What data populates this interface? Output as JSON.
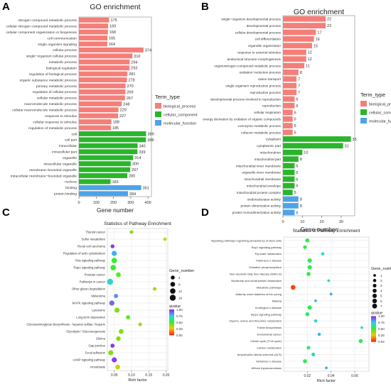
{
  "colors": {
    "bp": "#F47F79",
    "cc": "#2BB52C",
    "mf": "#4EA3E6",
    "grid": "#EBEBEB",
    "panel": "#FFFFFF"
  },
  "chart_data": [
    {
      "panel": "A",
      "type": "bar",
      "orientation": "horizontal",
      "title": "GO enrichment",
      "xlabel": "Gene number",
      "ylabel": "",
      "xlim": [
        0,
        420
      ],
      "xticks": [
        0,
        100,
        200,
        300,
        400
      ],
      "legend_title": "Term_type",
      "legend_placement": "right",
      "legend": [
        "biological_process",
        "cellular_component",
        "molecular_function"
      ],
      "categories": [
        "nitrogen compound metabolic process",
        "cellular nitrogen compound metabolic process",
        "cellular component organization or biogenesis",
        "cell communication",
        "single organism signaling",
        "cellular process",
        "single−organism cellular process",
        "metabolic process",
        "biological regulation",
        "regulation of biological process",
        "organic substance metabolic process",
        "primary metabolic process",
        "regulation of cellular process",
        "cellular metabolic process",
        "macromolecule metabolic process",
        "cellular macromolecule metabolic process",
        "response to stimulus",
        "cellular response to stimulus",
        "regulation of metabolic process",
        "cell",
        "cell part",
        "intracellular",
        "intracellular part",
        "organelle",
        "intracellular organelle",
        "membrane−bounded organelle",
        "intracellular membrane−bounded organelle",
        "nucleus",
        "binding",
        "protein binding"
      ],
      "values": [
        175,
        169,
        168,
        165,
        164,
        374,
        310,
        294,
        293,
        281,
        278,
        270,
        269,
        267,
        248,
        229,
        227,
        188,
        185,
        389,
        388,
        340,
        339,
        314,
        300,
        297,
        280,
        183,
        361,
        284
      ],
      "value_labels": [
        "175",
        "169",
        "168",
        "165",
        "164",
        "374",
        "310",
        "294",
        "293",
        "281",
        "278",
        "270",
        "269",
        "267",
        "248",
        "229",
        "227",
        "188",
        "185",
        "389",
        "388",
        "340",
        "339",
        "314",
        "300",
        "297",
        "280",
        "183",
        "361",
        "284"
      ],
      "term_types": [
        "bp",
        "bp",
        "bp",
        "bp",
        "bp",
        "bp",
        "bp",
        "bp",
        "bp",
        "bp",
        "bp",
        "bp",
        "bp",
        "bp",
        "bp",
        "bp",
        "bp",
        "bp",
        "bp",
        "cc",
        "cc",
        "cc",
        "cc",
        "cc",
        "cc",
        "cc",
        "cc",
        "cc",
        "mf",
        "mf"
      ]
    },
    {
      "panel": "B",
      "type": "bar",
      "orientation": "horizontal",
      "title": "GO enrichment",
      "xlabel": "Gene number",
      "ylabel": "",
      "xlim": [
        0,
        37
      ],
      "xticks": [
        0,
        10,
        20,
        30
      ],
      "legend_title": "Term_type",
      "legend_placement": "right",
      "legend": [
        "biological_process",
        "cellular_component",
        "molecular_function"
      ],
      "categories": [
        "single−organism developmental process",
        "developmental process",
        "cellular developmental process",
        "cell differentiation",
        "organelle organization",
        "response to external stimulus",
        "anatomical structure morphogenesis",
        "organonitrogen compound metabolic process",
        "oxidation−reduction process",
        "cation transport",
        "single organism reproductive process",
        "reproductive process",
        "developmental process involved in reproduction",
        "reproduction",
        "cellular respiration",
        "energy derivation by oxidation of organic compounds",
        "coenzyme metabolic process",
        "cofactor metabolic process",
        "cytoplasm",
        "cytoplasmic part",
        "mitochondrion",
        "mitochondrial part",
        "mitochondrial inner membrane",
        "organelle inner membrane",
        "mitochondrial membrane",
        "mitochondrial envelope",
        "mitochondrial protein complex",
        "oxidoreductase activity",
        "protein dimerization activity",
        "protein homodimerization activity"
      ],
      "values": [
        22,
        22,
        17,
        16,
        15,
        12,
        12,
        11,
        8,
        7,
        7,
        7,
        6,
        6,
        5,
        5,
        5,
        5,
        35,
        31,
        10,
        8,
        6,
        6,
        6,
        6,
        5,
        8,
        8,
        6
      ],
      "value_labels": [
        "22",
        "22",
        "17",
        "16",
        "15",
        "12",
        "12",
        "11",
        "8",
        "7",
        "7",
        "7",
        "6",
        "6",
        "5",
        "5",
        "5",
        "5",
        "35",
        "31",
        "10",
        "8",
        "6",
        "6",
        "6",
        "6",
        "5",
        "8",
        "8",
        "6"
      ],
      "term_types": [
        "bp",
        "bp",
        "bp",
        "bp",
        "bp",
        "bp",
        "bp",
        "bp",
        "bp",
        "bp",
        "bp",
        "bp",
        "bp",
        "bp",
        "bp",
        "bp",
        "bp",
        "bp",
        "cc",
        "cc",
        "cc",
        "cc",
        "cc",
        "cc",
        "cc",
        "cc",
        "cc",
        "mf",
        "mf",
        "mf"
      ]
    },
    {
      "panel": "C",
      "type": "scatter",
      "title": "Statistics of Pathway Enrichment",
      "xlabel": "Rich factor",
      "ylabel": "",
      "xlim": [
        0.03,
        0.205
      ],
      "xticks": [
        0.05,
        0.1,
        0.15,
        0.2
      ],
      "xtick_labels": [
        "0.05",
        "0.10",
        "0.15",
        "0.20"
      ],
      "grid": true,
      "size_legend_title": "Gene_number",
      "size_legend": [
        "4",
        "8",
        "12",
        "16"
      ],
      "size_legend_values": [
        4,
        8,
        12,
        16
      ],
      "color_legend_title": "qvalue",
      "color_legend": [
        "1.00",
        "0.75",
        "0.50",
        "0.25",
        "0.00"
      ],
      "legend_placement": "right",
      "categories": [
        "Thyroid cancer",
        "Sulfur metabolism",
        "Renal cell carcinoma",
        "Regulation of actin cytoskeleton",
        "Ras signaling pathway",
        "Rap1 signaling pathway",
        "Prostate cancer",
        "Pathways in cancer",
        "Other glycan degradation",
        "Melanoma",
        "MAPK signaling pathway",
        "Lysosome",
        "Long-term depression",
        "Glycosaminoglycan biosynthesis - heparan sulfate / heparin",
        "Glycolysis / Gluconeogenesis",
        "Glioma",
        "Gap junction",
        "Focal adhesion",
        "cAMP signaling pathway",
        "Amoebiasis"
      ],
      "rich_factor": [
        0.1,
        0.197,
        0.045,
        0.05,
        0.05,
        0.047,
        0.062,
        0.038,
        0.167,
        0.055,
        0.043,
        0.058,
        0.09,
        0.125,
        0.07,
        0.062,
        0.045,
        0.04,
        0.05,
        0.06
      ],
      "gene_number": [
        3,
        2,
        4,
        10,
        12,
        12,
        8,
        16,
        3,
        5,
        10,
        10,
        5,
        3,
        8,
        7,
        5,
        10,
        10,
        8
      ],
      "qvalue": [
        0.4,
        0.3,
        0.97,
        0.8,
        0.5,
        0.5,
        0.45,
        0.7,
        0.35,
        0.85,
        0.9,
        0.4,
        0.45,
        0.35,
        0.4,
        0.4,
        0.97,
        0.4,
        0.97,
        0.3
      ]
    },
    {
      "panel": "D",
      "type": "scatter",
      "title": "Statistics of Pathway Enrichment",
      "xlabel": "Rich factor",
      "ylabel": "",
      "xlim": [
        0.0,
        0.072
      ],
      "xticks": [
        0.02,
        0.04,
        0.06
      ],
      "xtick_labels": [
        "0.02",
        "0.04",
        "0.06"
      ],
      "grid": true,
      "size_legend_title": "Gene_number",
      "size_legend": [
        "1",
        "2",
        "3",
        "4",
        "5",
        "6",
        "7"
      ],
      "size_legend_values": [
        1,
        2,
        3,
        4,
        5,
        6,
        7
      ],
      "color_legend_title": "qvalue",
      "color_legend": [
        "1.00",
        "0.75",
        "0.50",
        "0.25",
        "0.04"
      ],
      "legend_placement": "right",
      "categories": [
        "Signaling pathways regulating pluripotency of stem cells",
        "Rap1 signaling pathway",
        "Pyruvate metabolism",
        "Parkinson s disease",
        "Oxidative phosphorylation",
        "Non-alcoholic fatty liver disease (NAFLD)",
        "Nicotinate and nicotinamide metabolism",
        "Metabolic pathways",
        "Maturity onset diabetes of the young",
        "Malaria",
        "Huntington s disease",
        "Hippo signaling pathway",
        "Glycine, serine and threonine metabolism",
        "Folate biosynthesis",
        "Endometrial cancer",
        "Citrate cycle (TCA cycle)",
        "Carbon metabolism",
        "Amyotrophic lateral sclerosis (ALS)",
        "Alzheimer s disease",
        "African trypanosomiasis"
      ],
      "rich_factor": [
        0.02,
        0.018,
        0.033,
        0.022,
        0.022,
        0.021,
        0.038,
        0.008,
        0.04,
        0.027,
        0.022,
        0.02,
        0.027,
        0.066,
        0.03,
        0.065,
        0.021,
        0.025,
        0.018,
        0.036
      ],
      "gene_number": [
        4,
        3,
        2,
        5,
        5,
        4,
        1,
        7,
        1,
        1,
        5,
        4,
        2,
        1,
        2,
        4,
        3,
        3,
        4,
        1
      ],
      "qvalue": [
        0.55,
        0.55,
        0.7,
        0.55,
        0.55,
        0.55,
        0.7,
        0.04,
        0.8,
        0.8,
        0.55,
        0.6,
        0.7,
        0.7,
        0.8,
        0.55,
        0.6,
        0.7,
        0.55,
        0.8
      ]
    }
  ]
}
